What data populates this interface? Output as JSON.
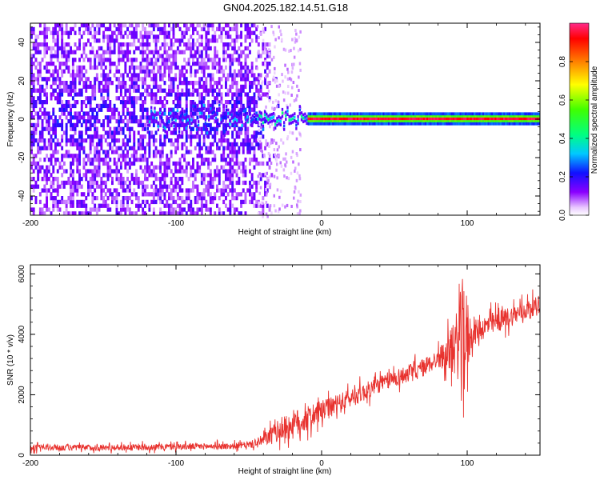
{
  "title": "GN04.2025.182.14.51.G18",
  "colors": {
    "snr_line": "#e8322e",
    "frame": "#000000",
    "background": "#ffffff"
  },
  "chart_data": [
    {
      "type": "heatmap",
      "xlabel": "Height of straight line (km)",
      "ylabel": "Frequency (Hz)",
      "xlim": [
        -200,
        150
      ],
      "ylim": [
        -50,
        50
      ],
      "xticks": [
        -200,
        -100,
        0,
        100
      ],
      "yticks": [
        -40,
        -20,
        0,
        20,
        40
      ],
      "colorbar": {
        "label": "Normalized spectral amplitude",
        "range": [
          0,
          1
        ],
        "ticks": [
          "0.0",
          "0.2",
          "0.4",
          "0.6",
          "0.8"
        ],
        "colormap": "hsv (purple → blue → cyan → green → yellow → red)"
      },
      "description_of_data": {
        "scattered_noise_region_km": [
          -200,
          -45
        ],
        "main_ridge_frequency_hz": 0,
        "ridge_strong_from_km": -10,
        "ridge_strong_to_km": 150
      }
    },
    {
      "type": "line",
      "xlabel": "Height of straight line (km)",
      "ylabel": "SNR (10 * v/v)",
      "xlim": [
        -200,
        150
      ],
      "ylim": [
        0,
        6300
      ],
      "xticks": [
        -200,
        -100,
        0,
        100
      ],
      "yticks": [
        0,
        2000,
        4000,
        6000
      ],
      "series": [
        {
          "trend": [
            [
              -200,
              250
            ],
            [
              -150,
              250
            ],
            [
              -100,
              280
            ],
            [
              -60,
              300
            ],
            [
              -45,
              380
            ],
            [
              -40,
              500
            ],
            [
              -30,
              800
            ],
            [
              -20,
              1000
            ],
            [
              -10,
              1200
            ],
            [
              0,
              1450
            ],
            [
              10,
              1650
            ],
            [
              20,
              1900
            ],
            [
              30,
              2100
            ],
            [
              40,
              2350
            ],
            [
              50,
              2550
            ],
            [
              60,
              2700
            ],
            [
              70,
              2900
            ],
            [
              80,
              3200
            ],
            [
              85,
              3350
            ],
            [
              90,
              3500
            ],
            [
              95,
              3800
            ],
            [
              100,
              3900
            ],
            [
              110,
              4200
            ],
            [
              120,
              4400
            ],
            [
              130,
              4600
            ],
            [
              140,
              4800
            ],
            [
              150,
              5000
            ]
          ],
          "noise_amplitude": [
            [
              -200,
              150
            ],
            [
              -50,
              150
            ],
            [
              -40,
              300
            ],
            [
              -20,
              700
            ],
            [
              0,
              500
            ],
            [
              40,
              400
            ],
            [
              80,
              450
            ],
            [
              88,
              900
            ],
            [
              94,
              1800
            ],
            [
              97,
              3000
            ],
            [
              100,
              2000
            ],
            [
              103,
              600
            ],
            [
              150,
              400
            ]
          ]
        }
      ]
    }
  ]
}
